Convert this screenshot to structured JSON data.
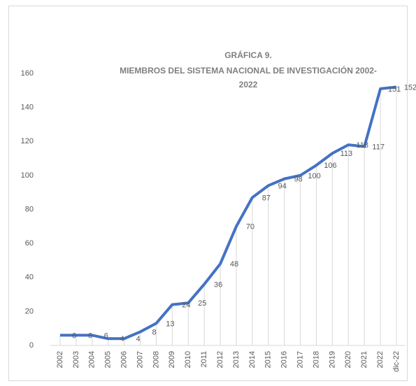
{
  "chart_data": {
    "type": "line",
    "title": [
      "GRÁFICA 9.",
      "MIEMBROS DEL SISTEMA NACIONAL DE INVESTIGACIÓN 2002-",
      "2022"
    ],
    "categories": [
      "2002",
      "2003",
      "2004",
      "2005",
      "2006",
      "2007",
      "2008",
      "2009",
      "2010",
      "2011",
      "2012",
      "2013",
      "2014",
      "2015",
      "2016",
      "2017",
      "2018",
      "2019",
      "2020",
      "2021",
      "2022",
      "dic-22"
    ],
    "values": [
      6,
      6,
      6,
      4,
      4,
      8,
      13,
      24,
      25,
      36,
      48,
      70,
      87,
      94,
      98,
      100,
      106,
      113,
      118,
      117,
      151,
      152
    ],
    "color": "#4472c4",
    "ylim": [
      0,
      160
    ],
    "yticks": [
      0,
      20,
      40,
      60,
      80,
      100,
      120,
      140,
      160
    ],
    "data_labels": true,
    "drop_lines": true
  }
}
